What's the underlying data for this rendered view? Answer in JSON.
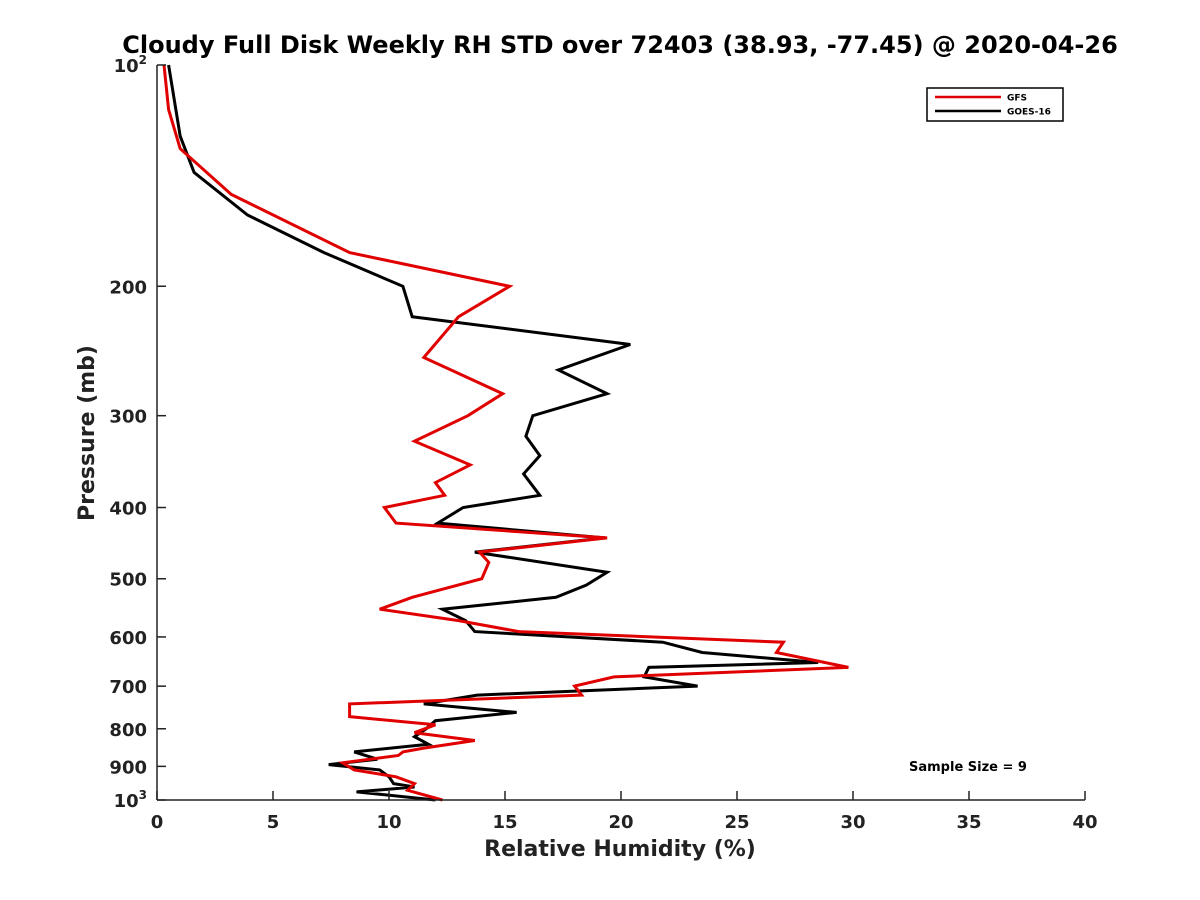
{
  "chart_data": {
    "type": "line",
    "title": "Cloudy Full Disk Weekly RH STD over 72403 (38.93, -77.45) @ 2020-04-26",
    "xlabel": "Relative Humidity (%)",
    "ylabel": "Pressure (mb)",
    "xlim": [
      0,
      40
    ],
    "ylim": [
      100,
      1000
    ],
    "y_scale": "log",
    "y_reversed": true,
    "x_ticks": [
      0,
      5,
      10,
      15,
      20,
      25,
      30,
      35,
      40
    ],
    "x_tick_labels": [
      "0",
      "5",
      "10",
      "15",
      "20",
      "25",
      "30",
      "35",
      "40"
    ],
    "y_ticks": [
      200,
      300,
      400,
      500,
      600,
      700,
      800,
      900
    ],
    "y_tick_labels": [
      "200",
      "300",
      "400",
      "500",
      "600",
      "700",
      "800",
      "900"
    ],
    "y_tick_top": {
      "base": "10",
      "exp": "2"
    },
    "y_tick_bottom": {
      "base": "10",
      "exp": "3"
    },
    "grid": false,
    "legend_position": "top-right",
    "annotation": "Sample Size = 9",
    "series": [
      {
        "name": "GFS",
        "color": "#e00000",
        "points": [
          [
            0.3,
            100
          ],
          [
            0.5,
            115
          ],
          [
            1.0,
            130
          ],
          [
            3.2,
            150
          ],
          [
            8.3,
            180
          ],
          [
            15.2,
            200
          ],
          [
            13.0,
            220
          ],
          [
            11.5,
            250
          ],
          [
            14.9,
            280
          ],
          [
            13.4,
            300
          ],
          [
            11.1,
            325
          ],
          [
            13.5,
            350
          ],
          [
            12.0,
            370
          ],
          [
            12.4,
            385
          ],
          [
            9.8,
            400
          ],
          [
            10.3,
            420
          ],
          [
            19.4,
            440
          ],
          [
            13.9,
            460
          ],
          [
            14.3,
            475
          ],
          [
            14.0,
            500
          ],
          [
            11.0,
            530
          ],
          [
            9.6,
            550
          ],
          [
            13.0,
            570
          ],
          [
            15.6,
            590
          ],
          [
            27.0,
            610
          ],
          [
            26.7,
            630
          ],
          [
            29.8,
            660
          ],
          [
            19.7,
            680
          ],
          [
            18.0,
            700
          ],
          [
            18.3,
            720
          ],
          [
            8.3,
            740
          ],
          [
            8.3,
            770
          ],
          [
            12.0,
            790
          ],
          [
            11.1,
            810
          ],
          [
            13.7,
            830
          ],
          [
            11.5,
            850
          ],
          [
            10.6,
            860
          ],
          [
            10.4,
            870
          ],
          [
            8.0,
            890
          ],
          [
            8.5,
            910
          ],
          [
            10.3,
            930
          ],
          [
            11.1,
            950
          ],
          [
            10.8,
            970
          ],
          [
            12.3,
            1000
          ]
        ]
      },
      {
        "name": "GOES-16",
        "color": "#000000",
        "points": [
          [
            0.5,
            100
          ],
          [
            1.0,
            125
          ],
          [
            1.6,
            140
          ],
          [
            3.9,
            160
          ],
          [
            7.2,
            180
          ],
          [
            10.6,
            200
          ],
          [
            11.0,
            220
          ],
          [
            20.4,
            240
          ],
          [
            17.3,
            260
          ],
          [
            19.4,
            280
          ],
          [
            16.2,
            300
          ],
          [
            15.9,
            320
          ],
          [
            16.5,
            340
          ],
          [
            15.8,
            360
          ],
          [
            16.5,
            385
          ],
          [
            13.2,
            400
          ],
          [
            12.1,
            420
          ],
          [
            19.3,
            440
          ],
          [
            13.7,
            460
          ],
          [
            19.4,
            490
          ],
          [
            18.5,
            510
          ],
          [
            17.2,
            530
          ],
          [
            12.3,
            550
          ],
          [
            13.3,
            570
          ],
          [
            13.7,
            590
          ],
          [
            21.8,
            610
          ],
          [
            23.5,
            630
          ],
          [
            28.5,
            650
          ],
          [
            21.2,
            660
          ],
          [
            21.0,
            680
          ],
          [
            23.3,
            700
          ],
          [
            13.8,
            720
          ],
          [
            11.5,
            740
          ],
          [
            15.5,
            760
          ],
          [
            12.0,
            780
          ],
          [
            11.6,
            800
          ],
          [
            11.1,
            820
          ],
          [
            11.7,
            840
          ],
          [
            8.5,
            860
          ],
          [
            9.5,
            880
          ],
          [
            7.4,
            895
          ],
          [
            9.6,
            910
          ],
          [
            10.0,
            930
          ],
          [
            10.2,
            950
          ],
          [
            11.1,
            960
          ],
          [
            8.6,
            975
          ],
          [
            12.0,
            1000
          ]
        ]
      }
    ]
  }
}
